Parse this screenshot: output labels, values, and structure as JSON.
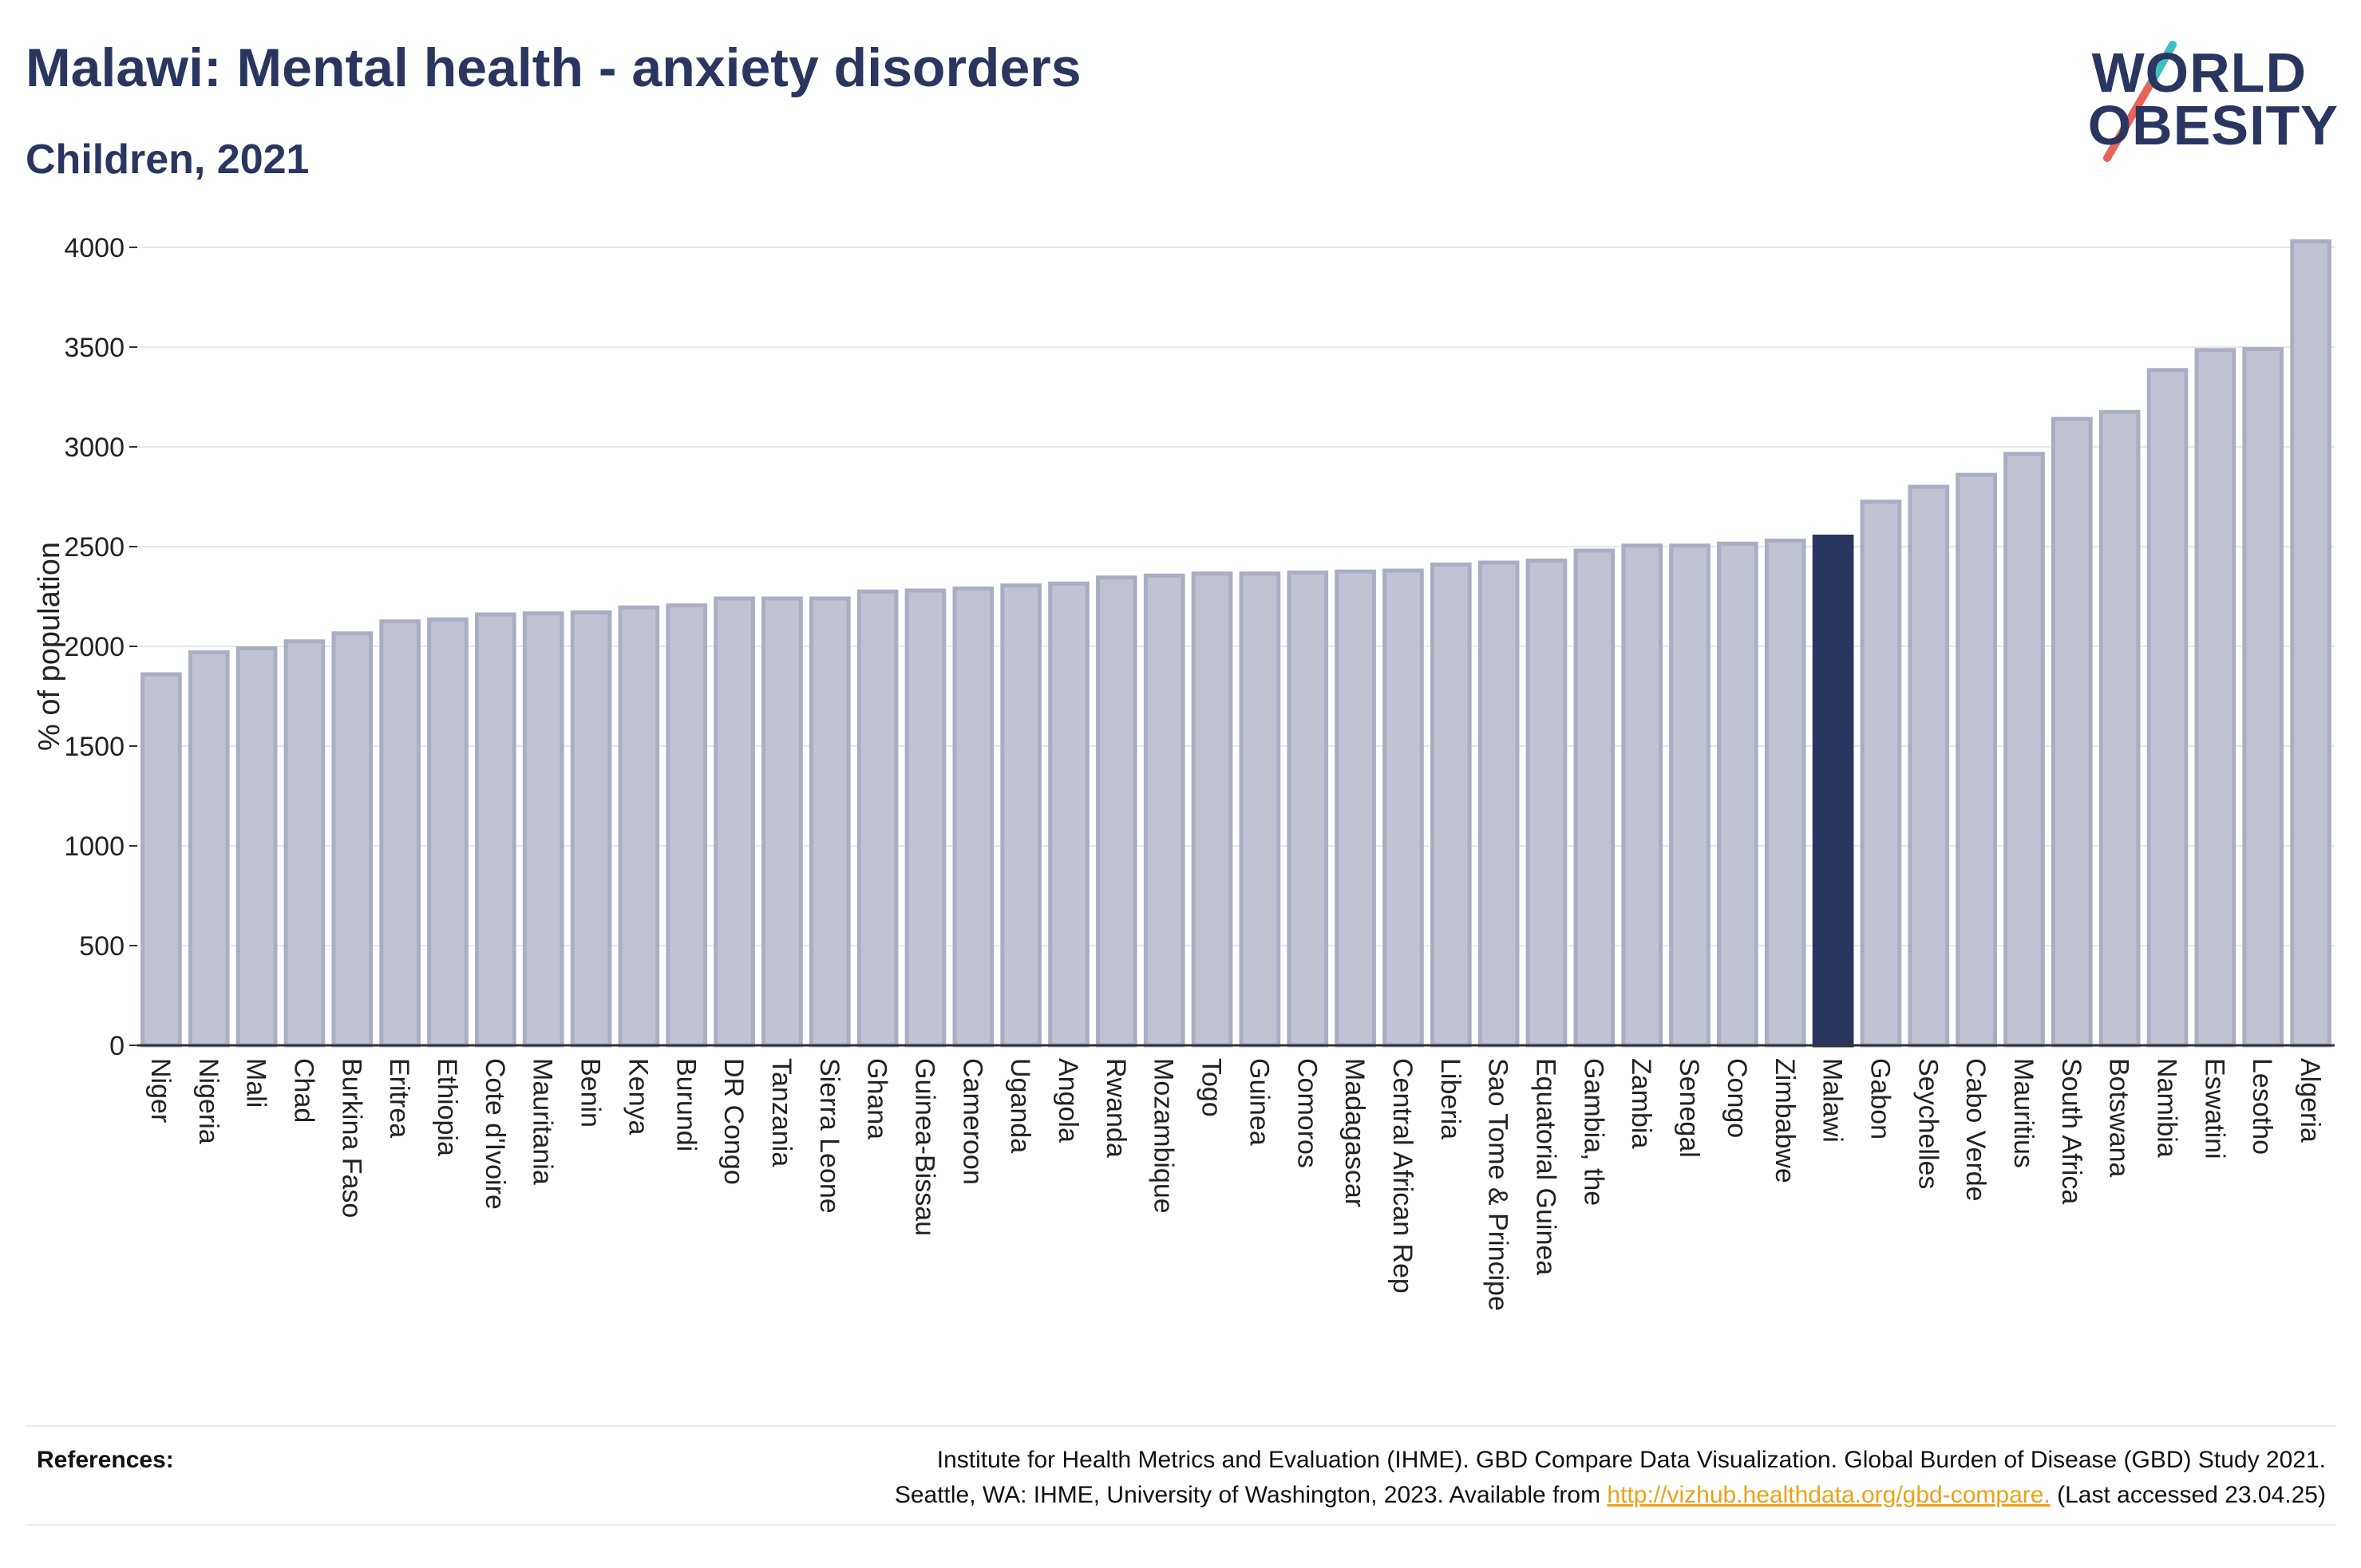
{
  "header": {
    "title": "Malawi: Mental health - anxiety disorders",
    "subtitle": "Children, 2021"
  },
  "logo": {
    "line1": "WORLD",
    "line2": "OBESITY",
    "accent_colors": [
      "#e8645a",
      "#3cc0c0"
    ]
  },
  "colors": {
    "bar_default": "#bfc3d2",
    "bar_border": "#a9aec3",
    "bar_highlight": "#2a3660",
    "text": "#2a3660",
    "link": "#e8a317"
  },
  "chart_data": {
    "type": "bar",
    "title": "",
    "xlabel": "",
    "ylabel": "% of population",
    "ylim": [
      0,
      4000
    ],
    "yticks": [
      0,
      500,
      1000,
      1500,
      2000,
      2500,
      3000,
      3500,
      4000
    ],
    "grid": true,
    "highlight": "Malawi",
    "categories": [
      "Niger",
      "Nigeria",
      "Mali",
      "Chad",
      "Burkina Faso",
      "Eritrea",
      "Ethiopia",
      "Cote d'Ivoire",
      "Mauritania",
      "Benin",
      "Kenya",
      "Burundi",
      "DR Congo",
      "Tanzania",
      "Sierra Leone",
      "Ghana",
      "Guinea-Bissau",
      "Cameroon",
      "Uganda",
      "Angola",
      "Rwanda",
      "Mozambique",
      "Togo",
      "Guinea",
      "Comoros",
      "Madagascar",
      "Central African Rep",
      "Liberia",
      "Sao Tome & Principe",
      "Equatorial Guinea",
      "Gambia, the",
      "Zambia",
      "Senegal",
      "Congo",
      "Zimbabwe",
      "Malawi",
      "Gabon",
      "Seychelles",
      "Cabo Verde",
      "Mauritius",
      "South Africa",
      "Botswana",
      "Namibia",
      "Eswatini",
      "Lesotho",
      "Algeria"
    ],
    "values": [
      1860,
      1970,
      1990,
      2025,
      2065,
      2125,
      2135,
      2160,
      2165,
      2170,
      2195,
      2205,
      2240,
      2240,
      2240,
      2275,
      2280,
      2290,
      2305,
      2315,
      2345,
      2355,
      2365,
      2365,
      2370,
      2375,
      2380,
      2410,
      2420,
      2430,
      2480,
      2505,
      2505,
      2515,
      2530,
      2550,
      2725,
      2800,
      2860,
      2965,
      3140,
      3175,
      3385,
      3485,
      3490,
      4030
    ]
  },
  "references": {
    "label": "References:",
    "line1": "Institute for Health Metrics and Evaluation (IHME). GBD Compare Data Visualization. Global Burden of Disease (GBD) Study 2021.",
    "line2_before": "Seattle, WA: IHME, University of Washington, 2023. Available from ",
    "link": "http://vizhub.healthdata.org/gbd-compare.",
    "line2_after": " (Last accessed 23.04.25)"
  }
}
